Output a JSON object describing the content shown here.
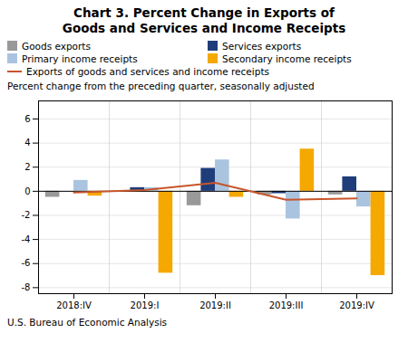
{
  "chart_data": {
    "type": "bar",
    "title": "Chart 3. Percent Change in Exports of\nGoods and Services and Income Receipts",
    "subtitle": "Percent change from the preceding quarter, seasonally adjusted",
    "footnote": "U.S. Bureau of Economic Analysis",
    "categories": [
      "2018:IV",
      "2019:I",
      "2019:II",
      "2019:III",
      "2019:IV"
    ],
    "series": [
      {
        "name": "Goods exports",
        "color": "#999999",
        "values": [
          -0.5,
          0.0,
          -1.2,
          -0.3,
          -0.3
        ]
      },
      {
        "name": "Services exports",
        "color": "#1f3d7a",
        "values": [
          0.0,
          0.3,
          1.9,
          -0.2,
          1.2
        ]
      },
      {
        "name": "Primary income receipts",
        "color": "#aac4e0",
        "values": [
          0.9,
          0.3,
          2.6,
          -2.3,
          -1.3
        ]
      },
      {
        "name": "Secondary income receipts",
        "color": "#f5a800",
        "values": [
          -0.4,
          -6.8,
          -0.5,
          3.5,
          -7.0
        ]
      },
      {
        "name": "Exports of goods and services and income receipts",
        "type": "line",
        "color": "#c8552a",
        "values": [
          -0.1,
          0.1,
          0.7,
          -0.7,
          -0.6
        ]
      }
    ],
    "ylim": [
      -8.5,
      7.5
    ],
    "yticks": [
      -8,
      -6,
      -4,
      -2,
      0,
      2,
      4,
      6
    ],
    "grid": true,
    "legend": "top"
  }
}
